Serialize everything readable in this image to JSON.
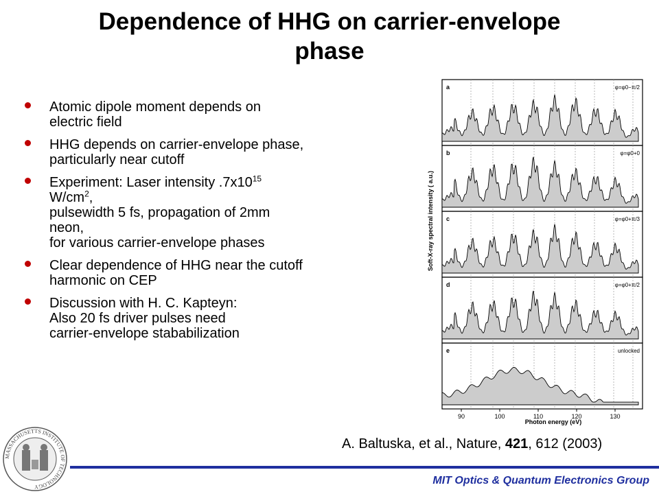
{
  "slide": {
    "title_line1": "Dependence of HHG on carrier-envelope",
    "title_line2": "phase",
    "bullets": [
      {
        "lines": [
          "Atomic dipole moment depends on",
          "electric field"
        ]
      },
      {
        "lines": [
          "HHG depends on carrier-envelope phase,",
          "particularly near cutoff"
        ]
      },
      {
        "exp1": "Experiment: Laser intensity .7x10",
        "exp1_sup": "15",
        "exp2": "W/cm",
        "exp2_sup": "2",
        "exp2_tail": ",",
        "lines": [
          "pulsewidth 5 fs, propagation of 2mm",
          "neon,",
          "for various carrier-envelope phases"
        ]
      },
      {
        "lines": [
          "Clear dependence of HHG near the cutoff",
          "harmonic on CEP"
        ]
      },
      {
        "lines": [
          "Discussion with H. C. Kapteyn:",
          "Also 20 fs driver pulses need",
          "carrier-envelope stababilization"
        ]
      }
    ],
    "citation": {
      "pre": "A. Baltuska, et al., Nature, ",
      "vol": "421",
      "post": ", 612 (2003)"
    },
    "footer": "MIT Optics & Quantum Electronics Group",
    "seal_text": "MASSACHUSETTS INSTITUTE OF TECHNOLOGY",
    "figure": {
      "panels": [
        {
          "letter": "a",
          "label": "φ=φ0−π/2"
        },
        {
          "letter": "b",
          "label": "φ=φ0+0"
        },
        {
          "letter": "c",
          "label": "φ=φ0+π/3"
        },
        {
          "letter": "d",
          "label": "φ=φ0+π/2"
        },
        {
          "letter": "e",
          "label": "unlocked"
        }
      ],
      "x_ticks": [
        "90",
        "100",
        "110",
        "120",
        "130"
      ],
      "xlabel": "Photon energy (eV)",
      "ylabel": "Soft-X-ray spectral intensity ( a.u.)"
    },
    "colors": {
      "bullet": "#c00000",
      "accent": "#1f2f9f",
      "fill": "#cccccc"
    }
  }
}
